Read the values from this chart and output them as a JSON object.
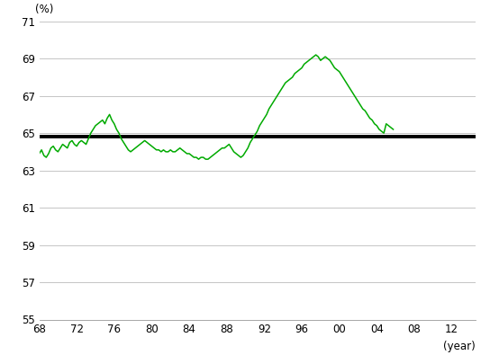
{
  "title": "(%)",
  "xlabel": "(year)",
  "xlim": [
    1968,
    2014.5
  ],
  "ylim": [
    55,
    71
  ],
  "yticks": [
    55,
    57,
    59,
    61,
    63,
    65,
    67,
    69,
    71
  ],
  "xticks": [
    1968,
    1972,
    1976,
    1980,
    1984,
    1988,
    1992,
    1996,
    2000,
    2004,
    2008,
    2012
  ],
  "xticklabels": [
    "68",
    "72",
    "76",
    "80",
    "84",
    "88",
    "92",
    "96",
    "00",
    "04",
    "08",
    "12"
  ],
  "mean_line": 64.82,
  "line_color": "#00aa00",
  "mean_color": "#000000",
  "background_color": "#ffffff",
  "grid_color": "#bbbbbb",
  "start_year": 1968,
  "quarter_step": 0.25,
  "quarterly_data": [
    63.9,
    64.1,
    63.8,
    63.7,
    63.9,
    64.2,
    64.3,
    64.1,
    64.0,
    64.2,
    64.4,
    64.3,
    64.2,
    64.5,
    64.6,
    64.4,
    64.3,
    64.5,
    64.6,
    64.5,
    64.4,
    64.7,
    65.0,
    65.2,
    65.4,
    65.5,
    65.6,
    65.7,
    65.5,
    65.8,
    66.0,
    65.7,
    65.5,
    65.2,
    65.0,
    64.7,
    64.5,
    64.3,
    64.1,
    64.0,
    64.1,
    64.2,
    64.3,
    64.4,
    64.5,
    64.6,
    64.5,
    64.4,
    64.3,
    64.2,
    64.1,
    64.1,
    64.0,
    64.1,
    64.0,
    64.0,
    64.1,
    64.0,
    64.0,
    64.1,
    64.2,
    64.1,
    64.0,
    63.9,
    63.9,
    63.8,
    63.7,
    63.7,
    63.6,
    63.7,
    63.7,
    63.6,
    63.6,
    63.7,
    63.8,
    63.9,
    64.0,
    64.1,
    64.2,
    64.2,
    64.3,
    64.4,
    64.2,
    64.0,
    63.9,
    63.8,
    63.7,
    63.8,
    64.0,
    64.2,
    64.5,
    64.7,
    64.9,
    65.1,
    65.4,
    65.6,
    65.8,
    66.0,
    66.3,
    66.5,
    66.7,
    66.9,
    67.1,
    67.3,
    67.5,
    67.7,
    67.8,
    67.9,
    68.0,
    68.2,
    68.3,
    68.4,
    68.5,
    68.7,
    68.8,
    68.9,
    69.0,
    69.1,
    69.2,
    69.1,
    68.9,
    69.0,
    69.1,
    69.0,
    68.9,
    68.7,
    68.5,
    68.4,
    68.3,
    68.1,
    67.9,
    67.7,
    67.5,
    67.3,
    67.1,
    66.9,
    66.7,
    66.5,
    66.3,
    66.2,
    66.0,
    65.8,
    65.7,
    65.5,
    65.4,
    65.2,
    65.1,
    65.0,
    65.5,
    65.4,
    65.3,
    65.2
  ]
}
